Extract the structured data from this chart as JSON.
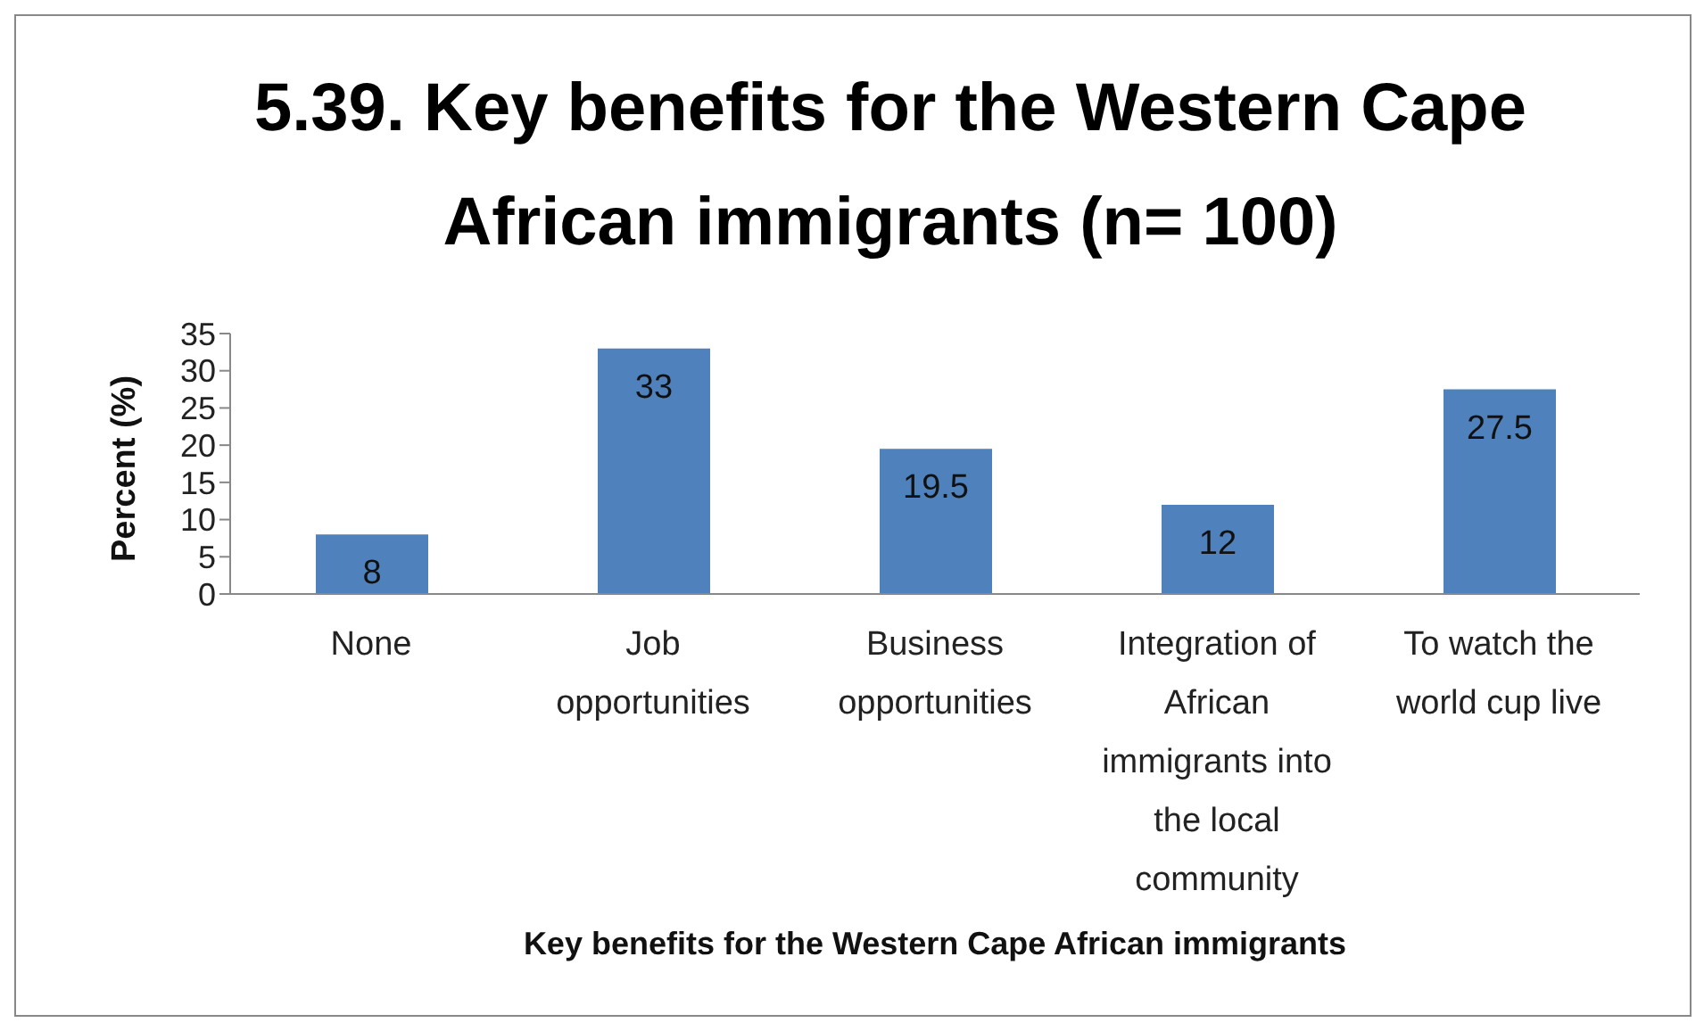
{
  "chart_data": {
    "type": "bar",
    "title": "5.39. Key benefits for the Western Cape African immigrants (n= 100)",
    "xlabel": "Key benefits for the Western Cape  African immigrants",
    "ylabel": "Percent (%)",
    "categories": [
      "None",
      "Job opportunities",
      "Business opportunities",
      "Integration of African immigrants into the local community",
      "To watch the world cup live"
    ],
    "values": [
      8,
      33,
      19.5,
      12,
      27.5
    ],
    "color": "#4f81bd",
    "ylim": [
      0,
      35
    ],
    "yticks": [
      0,
      5,
      10,
      15,
      20,
      25,
      30,
      35
    ],
    "grid": false,
    "legend": false,
    "data_labels": true
  }
}
